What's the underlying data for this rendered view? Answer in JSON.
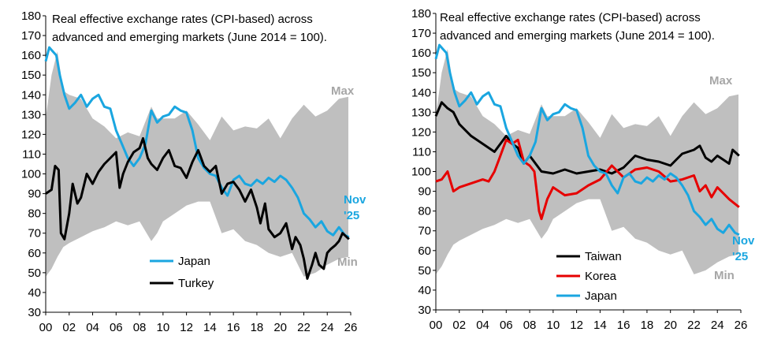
{
  "chart_data": [
    {
      "type": "line",
      "title_lines": [
        "Real effective exchange rates (CPI-based) across",
        "advanced and emerging markets (June 2014 = 100)."
      ],
      "xlim": [
        2000,
        2026
      ],
      "ylim": [
        30,
        180
      ],
      "yticks": [
        30,
        40,
        50,
        60,
        70,
        80,
        90,
        100,
        110,
        120,
        130,
        140,
        150,
        160,
        170,
        180
      ],
      "xtick_values": [
        2000,
        2002,
        2004,
        2006,
        2008,
        2010,
        2012,
        2014,
        2016,
        2018,
        2020,
        2022,
        2024,
        2026
      ],
      "xtick_labels": [
        "00",
        "02",
        "04",
        "06",
        "08",
        "10",
        "12",
        "14",
        "16",
        "18",
        "20",
        "22",
        "24",
        "26"
      ],
      "grid": false,
      "band": {
        "color": "#bfbfbf",
        "max_label": "Max",
        "min_label": "Min",
        "x": [
          2000,
          2000.5,
          2001,
          2001.5,
          2002,
          2003,
          2004,
          2005,
          2006,
          2007,
          2008,
          2009,
          2009.5,
          2010,
          2011,
          2012,
          2013,
          2014,
          2015,
          2016,
          2017,
          2018,
          2019,
          2020,
          2021,
          2022,
          2023,
          2024,
          2025,
          2025.8
        ],
        "max": [
          128,
          150,
          162,
          142,
          140,
          138,
          128,
          124,
          118,
          121,
          119,
          134,
          128,
          128,
          128,
          132,
          125,
          117,
          129,
          122,
          124,
          123,
          128,
          118,
          128,
          135,
          129,
          132,
          138,
          139
        ],
        "min": [
          48,
          52,
          58,
          63,
          65,
          68,
          71,
          73,
          76,
          74,
          76,
          66,
          70,
          76,
          80,
          84,
          86,
          86,
          70,
          72,
          66,
          64,
          60,
          58,
          60,
          48,
          50,
          54,
          57,
          58
        ]
      },
      "series": [
        {
          "name": "Japan",
          "color": "#1aa6e0",
          "x": [
            2000,
            2000.3,
            2000.6,
            2000.9,
            2001.2,
            2001.6,
            2002,
            2002.5,
            2003,
            2003.5,
            2004,
            2004.5,
            2005,
            2005.5,
            2006,
            2006.5,
            2007,
            2007.5,
            2008,
            2008.5,
            2009,
            2009.5,
            2010,
            2010.5,
            2011,
            2011.5,
            2012,
            2012.5,
            2013,
            2013.5,
            2014,
            2014.5,
            2015,
            2015.5,
            2016,
            2016.5,
            2017,
            2017.5,
            2018,
            2018.5,
            2019,
            2019.5,
            2020,
            2020.5,
            2021,
            2021.5,
            2022,
            2022.5,
            2023,
            2023.5,
            2024,
            2024.5,
            2025,
            2025.5,
            2025.85
          ],
          "values": [
            157,
            164,
            162,
            160,
            150,
            140,
            133,
            136,
            140,
            134,
            138,
            140,
            134,
            133,
            122,
            115,
            108,
            104,
            108,
            115,
            132,
            126,
            129,
            130,
            134,
            132,
            131,
            122,
            108,
            103,
            100,
            99,
            93,
            89,
            97,
            99,
            95,
            94,
            97,
            95,
            98,
            96,
            99,
            97,
            93,
            88,
            80,
            77,
            73,
            76,
            71,
            69,
            73,
            69,
            68
          ]
        },
        {
          "name": "Turkey",
          "color": "#000000",
          "x": [
            2000,
            2000.5,
            2000.8,
            2001.1,
            2001.3,
            2001.6,
            2002,
            2002.3,
            2002.7,
            2003,
            2003.5,
            2004,
            2004.5,
            2005,
            2005.5,
            2006,
            2006.3,
            2006.6,
            2007,
            2007.5,
            2008,
            2008.3,
            2008.7,
            2009,
            2009.5,
            2010,
            2010.5,
            2011,
            2011.5,
            2012,
            2012.5,
            2013,
            2013.5,
            2014,
            2014.5,
            2015,
            2015.5,
            2016,
            2016.5,
            2017,
            2017.5,
            2018,
            2018.3,
            2018.7,
            2019,
            2019.5,
            2020,
            2020.5,
            2021,
            2021.3,
            2021.7,
            2022,
            2022.3,
            2022.7,
            2023,
            2023.3,
            2023.7,
            2024,
            2024.3,
            2024.7,
            2025,
            2025.3,
            2025.85
          ],
          "values": [
            90,
            92,
            104,
            102,
            70,
            67,
            80,
            95,
            85,
            88,
            100,
            95,
            101,
            105,
            108,
            111,
            93,
            100,
            106,
            111,
            113,
            118,
            108,
            105,
            102,
            108,
            112,
            104,
            103,
            98,
            106,
            112,
            104,
            101,
            104,
            90,
            95,
            96,
            92,
            86,
            92,
            83,
            75,
            85,
            72,
            68,
            70,
            75,
            62,
            68,
            64,
            57,
            47,
            54,
            60,
            54,
            52,
            60,
            62,
            64,
            66,
            70,
            67
          ]
        }
      ],
      "legend": {
        "position": "bottom-center",
        "entries": [
          "Japan",
          "Turkey"
        ]
      },
      "end_label": {
        "lines": [
          "Nov",
          "'25"
        ],
        "color": "#1aa6e0"
      }
    },
    {
      "type": "line",
      "title_lines": [
        "Real effective exchange rates (CPI-based) across",
        "advanced and emerging markets (June 2014 = 100)."
      ],
      "xlim": [
        2000,
        2026
      ],
      "ylim": [
        30,
        180
      ],
      "yticks": [
        30,
        40,
        50,
        60,
        70,
        80,
        90,
        100,
        110,
        120,
        130,
        140,
        150,
        160,
        170,
        180
      ],
      "xtick_values": [
        2000,
        2002,
        2004,
        2006,
        2008,
        2010,
        2012,
        2014,
        2016,
        2018,
        2020,
        2022,
        2024,
        2026
      ],
      "xtick_labels": [
        "00",
        "02",
        "04",
        "06",
        "08",
        "10",
        "12",
        "14",
        "16",
        "18",
        "20",
        "22",
        "24",
        "26"
      ],
      "grid": false,
      "band": {
        "color": "#bfbfbf",
        "max_label": "Max",
        "min_label": "Min",
        "x": [
          2000,
          2000.5,
          2001,
          2001.5,
          2002,
          2003,
          2004,
          2005,
          2006,
          2007,
          2008,
          2009,
          2009.5,
          2010,
          2011,
          2012,
          2013,
          2014,
          2015,
          2016,
          2017,
          2018,
          2019,
          2020,
          2021,
          2022,
          2023,
          2024,
          2025,
          2025.8
        ],
        "max": [
          128,
          150,
          162,
          142,
          140,
          138,
          128,
          124,
          118,
          121,
          119,
          134,
          128,
          128,
          128,
          132,
          125,
          117,
          129,
          122,
          124,
          123,
          128,
          118,
          128,
          135,
          129,
          132,
          138,
          139
        ],
        "min": [
          48,
          52,
          58,
          63,
          65,
          68,
          71,
          73,
          76,
          74,
          76,
          66,
          70,
          76,
          80,
          84,
          86,
          86,
          70,
          72,
          66,
          64,
          60,
          58,
          60,
          48,
          50,
          54,
          57,
          58
        ]
      },
      "series": [
        {
          "name": "Taiwan",
          "color": "#000000",
          "x": [
            2000,
            2000.5,
            2001,
            2001.5,
            2002,
            2003,
            2004,
            2005,
            2006,
            2006.5,
            2007,
            2007.5,
            2008,
            2009,
            2010,
            2011,
            2012,
            2013,
            2014,
            2015,
            2016,
            2017,
            2018,
            2019,
            2020,
            2020.5,
            2021,
            2022,
            2022.5,
            2023,
            2023.5,
            2024,
            2024.5,
            2025,
            2025.3,
            2025.85
          ],
          "values": [
            128,
            135,
            132,
            130,
            124,
            118,
            114,
            110,
            118,
            114,
            112,
            104,
            108,
            100,
            99,
            101,
            99,
            100,
            101,
            99,
            102,
            108,
            106,
            105,
            103,
            106,
            109,
            111,
            113,
            107,
            105,
            108,
            106,
            104,
            111,
            108
          ]
        },
        {
          "name": "Korea",
          "color": "#e60000",
          "x": [
            2000,
            2000.5,
            2001,
            2001.5,
            2002,
            2003,
            2004,
            2004.5,
            2005,
            2005.5,
            2006,
            2006.5,
            2007,
            2007.5,
            2008,
            2008.4,
            2008.8,
            2009,
            2009.5,
            2010,
            2011,
            2012,
            2013,
            2014,
            2015,
            2016,
            2017,
            2018,
            2019,
            2020,
            2021,
            2022,
            2022.5,
            2023,
            2023.5,
            2024,
            2024.5,
            2025,
            2025.85
          ],
          "values": [
            95,
            96,
            100,
            90,
            92,
            94,
            96,
            95,
            100,
            108,
            116,
            114,
            116,
            105,
            103,
            100,
            80,
            76,
            86,
            92,
            88,
            89,
            93,
            96,
            103,
            97,
            101,
            102,
            100,
            95,
            96,
            98,
            90,
            93,
            87,
            92,
            89,
            86,
            82
          ]
        },
        {
          "name": "Japan",
          "color": "#1aa6e0",
          "x": [
            2000,
            2000.3,
            2000.6,
            2000.9,
            2001.2,
            2001.6,
            2002,
            2002.5,
            2003,
            2003.5,
            2004,
            2004.5,
            2005,
            2005.5,
            2006,
            2006.5,
            2007,
            2007.5,
            2008,
            2008.5,
            2009,
            2009.5,
            2010,
            2010.5,
            2011,
            2011.5,
            2012,
            2012.5,
            2013,
            2013.5,
            2014,
            2014.5,
            2015,
            2015.5,
            2016,
            2016.5,
            2017,
            2017.5,
            2018,
            2018.5,
            2019,
            2019.5,
            2020,
            2020.5,
            2021,
            2021.5,
            2022,
            2022.5,
            2023,
            2023.5,
            2024,
            2024.5,
            2025,
            2025.5,
            2025.85
          ],
          "values": [
            157,
            164,
            162,
            160,
            150,
            140,
            133,
            136,
            140,
            134,
            138,
            140,
            134,
            133,
            122,
            115,
            108,
            104,
            108,
            115,
            132,
            126,
            129,
            130,
            134,
            132,
            131,
            122,
            108,
            103,
            100,
            99,
            93,
            89,
            97,
            99,
            95,
            94,
            97,
            95,
            98,
            96,
            99,
            97,
            93,
            88,
            80,
            77,
            73,
            76,
            71,
            69,
            73,
            69,
            68
          ]
        }
      ],
      "legend": {
        "position": "bottom-center",
        "entries": [
          "Taiwan",
          "Korea",
          "Japan"
        ]
      },
      "end_label": {
        "lines": [
          "Nov",
          "'25"
        ],
        "color": "#1aa6e0"
      }
    }
  ]
}
